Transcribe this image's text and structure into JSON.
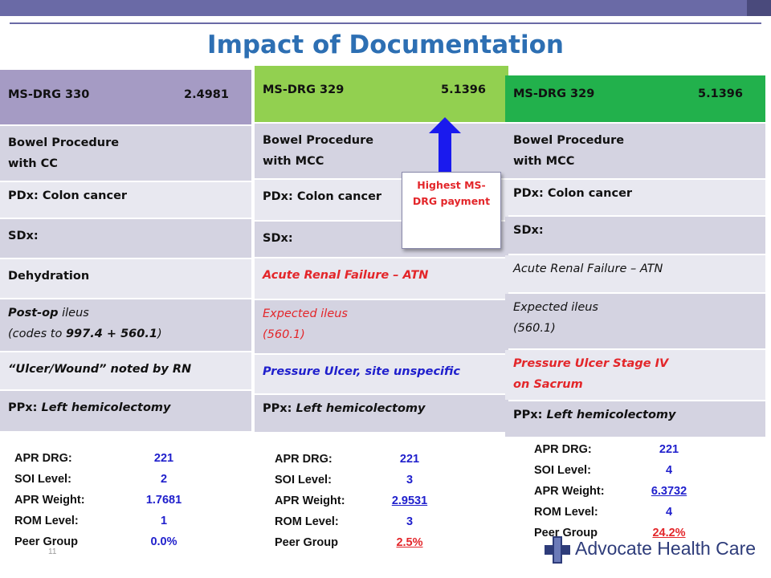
{
  "title": "Impact of Documentation",
  "page_number": "11",
  "logo_text": "Advocate Health Care",
  "callout": {
    "line1": "Highest MS-",
    "line2": "DRG payment"
  },
  "columns": [
    {
      "header": {
        "drg": "MS-DRG 330",
        "weight": "2.4981",
        "color": "#a59bc4"
      },
      "rows": [
        {
          "l1": "Bowel Procedure",
          "l2": "with CC"
        },
        {
          "l1": "PDx:  Colon cancer"
        },
        {
          "l1": "SDx:"
        },
        {
          "l1": "Dehydration"
        },
        {
          "l1a": "Post-op",
          "l1b": " ileus",
          "l2a": "(codes to ",
          "l2b": "997.4 + 560.1",
          "l2c": ")"
        },
        {
          "l1": "“Ulcer/Wound”  noted by RN"
        },
        {
          "l1a": "PPx:  ",
          "l1b": "Left hemicolectomy"
        }
      ],
      "stats": [
        {
          "label": "APR DRG:",
          "value": "221"
        },
        {
          "label": "SOI Level:",
          "value": "2"
        },
        {
          "label": "APR Weight:",
          "value": "1.7681"
        },
        {
          "label": "ROM Level:",
          "value": "1"
        },
        {
          "label": "Peer Group",
          "value": "0.0%"
        }
      ]
    },
    {
      "header": {
        "drg": "MS-DRG 329",
        "weight": "5.1396",
        "color": "#92d050"
      },
      "rows": [
        {
          "l1": "Bowel Procedure",
          "l2": "with MCC"
        },
        {
          "l1": "PDx:  Colon cancer"
        },
        {
          "l1": "SDx:"
        },
        {
          "l1": "Acute Renal Failure – ATN"
        },
        {
          "l1": "Expected ileus",
          "l2": "(560.1)"
        },
        {
          "l1": "Pressure  Ulcer, site unspecific"
        },
        {
          "l1a": "PPx:  ",
          "l1b": "Left hemicolectomy"
        }
      ],
      "stats": [
        {
          "label": "APR DRG:",
          "value": "221"
        },
        {
          "label": "SOI Level:",
          "value": "3"
        },
        {
          "label": "APR Weight:",
          "value": "2.9531"
        },
        {
          "label": "ROM Level:",
          "value": "3"
        },
        {
          "label": "Peer Group",
          "value": "2.5%"
        }
      ]
    },
    {
      "header": {
        "drg": "MS-DRG 329",
        "weight": "5.1396",
        "color": "#22b14c"
      },
      "rows": [
        {
          "l1": "Bowel Procedure",
          "l2": "with MCC"
        },
        {
          "l1": "PDx:  Colon cancer"
        },
        {
          "l1": "SDx:"
        },
        {
          "l1": "Acute Renal Failure – ATN"
        },
        {
          "l1": "Expected ileus",
          "l2": "(560.1)"
        },
        {
          "l1": "Pressure  Ulcer Stage IV",
          "l2": "on Sacrum"
        },
        {
          "l1a": "PPx:  ",
          "l1b": "Left hemicolectomy"
        }
      ],
      "stats": [
        {
          "label": "APR DRG:",
          "value": "221"
        },
        {
          "label": "SOI Level:",
          "value": "4"
        },
        {
          "label": "APR Weight:",
          "value": "6.3732"
        },
        {
          "label": "ROM Level:",
          "value": "4"
        },
        {
          "label": "Peer Group",
          "value": "24.2%"
        }
      ]
    }
  ]
}
